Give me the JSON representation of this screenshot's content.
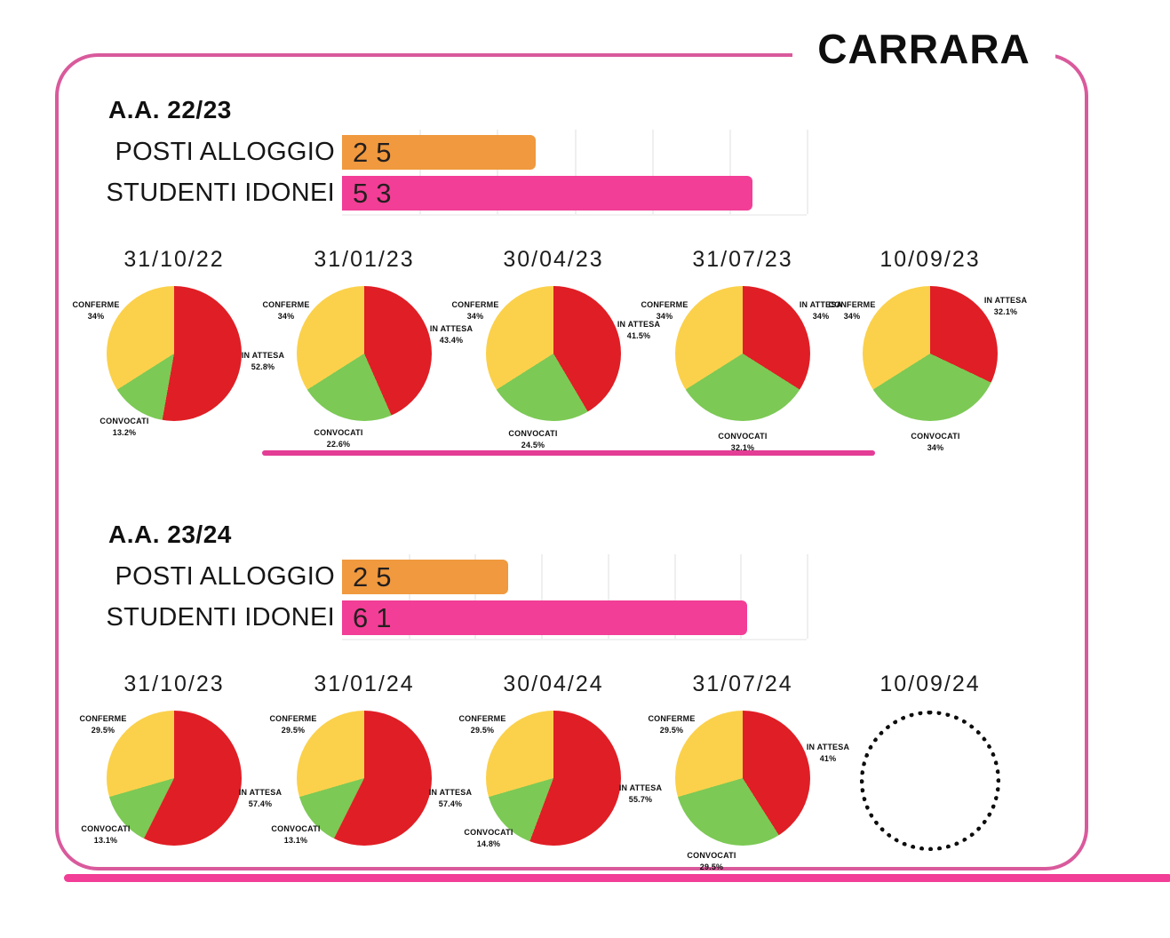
{
  "chart_data": {
    "type": "composite",
    "title": "CARRARA",
    "sections": [
      {
        "heading": "A.A. 22/23",
        "bar_chart": {
          "type": "bar",
          "orientation": "horizontal",
          "axis_max": 60,
          "grid_step": 10,
          "rows": [
            {
              "label": "POSTI ALLOGGIO",
              "value": 25,
              "display": "25",
              "color": "#F0993E"
            },
            {
              "label": "STUDENTI IDONEI",
              "value": 53,
              "display": "53",
              "color": "#F23E96"
            }
          ]
        },
        "divider": true,
        "pies": [
          {
            "type": "pie",
            "date": "31/10/22",
            "slices": [
              {
                "label": "IN ATTESA",
                "pct": 52.8,
                "display": "52.8%",
                "color": "#E01E25"
              },
              {
                "label": "CONVOCATI",
                "pct": 13.2,
                "display": "13.2%",
                "color": "#7CC955"
              },
              {
                "label": "CONFERME",
                "pct": 34,
                "display": "34%",
                "color": "#FBD14B"
              }
            ]
          },
          {
            "type": "pie",
            "date": "31/01/23",
            "slices": [
              {
                "label": "IN ATTESA",
                "pct": 43.4,
                "display": "43.4%",
                "color": "#E01E25"
              },
              {
                "label": "CONVOCATI",
                "pct": 22.6,
                "display": "22.6%",
                "color": "#7CC955"
              },
              {
                "label": "CONFERME",
                "pct": 34,
                "display": "34%",
                "color": "#FBD14B"
              }
            ]
          },
          {
            "type": "pie",
            "date": "30/04/23",
            "slices": [
              {
                "label": "IN ATTESA",
                "pct": 41.5,
                "display": "41.5%",
                "color": "#E01E25"
              },
              {
                "label": "CONVOCATI",
                "pct": 24.5,
                "display": "24.5%",
                "color": "#7CC955"
              },
              {
                "label": "CONFERME",
                "pct": 34,
                "display": "34%",
                "color": "#FBD14B"
              }
            ]
          },
          {
            "type": "pie",
            "date": "31/07/23",
            "slices": [
              {
                "label": "IN ATTESA",
                "pct": 34,
                "display": "34%",
                "color": "#E01E25"
              },
              {
                "label": "CONVOCATI",
                "pct": 32.1,
                "display": "32.1%",
                "color": "#7CC955"
              },
              {
                "label": "CONFERME",
                "pct": 34,
                "display": "34%",
                "color": "#FBD14B"
              }
            ]
          },
          {
            "type": "pie",
            "date": "10/09/23",
            "slices": [
              {
                "label": "IN ATTESA",
                "pct": 32.1,
                "display": "32.1%",
                "color": "#E01E25"
              },
              {
                "label": "CONVOCATI",
                "pct": 34,
                "display": "34%",
                "color": "#7CC955"
              },
              {
                "label": "CONFERME",
                "pct": 34,
                "display": "34%",
                "color": "#FBD14B"
              }
            ]
          }
        ]
      },
      {
        "heading": "A.A. 23/24",
        "bar_chart": {
          "type": "bar",
          "orientation": "horizontal",
          "axis_max": 70,
          "grid_step": 10,
          "rows": [
            {
              "label": "POSTI ALLOGGIO",
              "value": 25,
              "display": "25",
              "color": "#F0993E"
            },
            {
              "label": "STUDENTI IDONEI",
              "value": 61,
              "display": "61",
              "color": "#F23E96"
            }
          ]
        },
        "divider": false,
        "pies": [
          {
            "type": "pie",
            "date": "31/10/23",
            "slices": [
              {
                "label": "IN ATTESA",
                "pct": 57.4,
                "display": "57.4%",
                "color": "#E01E25"
              },
              {
                "label": "CONVOCATI",
                "pct": 13.1,
                "display": "13.1%",
                "color": "#7CC955"
              },
              {
                "label": "CONFERME",
                "pct": 29.5,
                "display": "29.5%",
                "color": "#FBD14B"
              }
            ]
          },
          {
            "type": "pie",
            "date": "31/01/24",
            "slices": [
              {
                "label": "IN ATTESA",
                "pct": 57.4,
                "display": "57.4%",
                "color": "#E01E25"
              },
              {
                "label": "CONVOCATI",
                "pct": 13.1,
                "display": "13.1%",
                "color": "#7CC955"
              },
              {
                "label": "CONFERME",
                "pct": 29.5,
                "display": "29.5%",
                "color": "#FBD14B"
              }
            ]
          },
          {
            "type": "pie",
            "date": "30/04/24",
            "slices": [
              {
                "label": "IN ATTESA",
                "pct": 55.7,
                "display": "55.7%",
                "color": "#E01E25"
              },
              {
                "label": "CONVOCATI",
                "pct": 14.8,
                "display": "14.8%",
                "color": "#7CC955"
              },
              {
                "label": "CONFERME",
                "pct": 29.5,
                "display": "29.5%",
                "color": "#FBD14B"
              }
            ]
          },
          {
            "type": "pie",
            "date": "31/07/24",
            "slices": [
              {
                "label": "IN ATTESA",
                "pct": 41,
                "display": "41%",
                "color": "#E01E25"
              },
              {
                "label": "CONVOCATI",
                "pct": 29.5,
                "display": "29.5%",
                "color": "#7CC955"
              },
              {
                "label": "CONFERME",
                "pct": 29.5,
                "display": "29.5%",
                "color": "#FBD14B"
              }
            ]
          },
          {
            "type": "pie",
            "date": "10/09/24",
            "placeholder": true,
            "slices": []
          }
        ]
      }
    ],
    "style": {
      "frame_color": "#D95A9C",
      "divider_color": "#E33D96",
      "bottom_band_color": "#F23E96",
      "grid_color": "#efefef"
    }
  }
}
